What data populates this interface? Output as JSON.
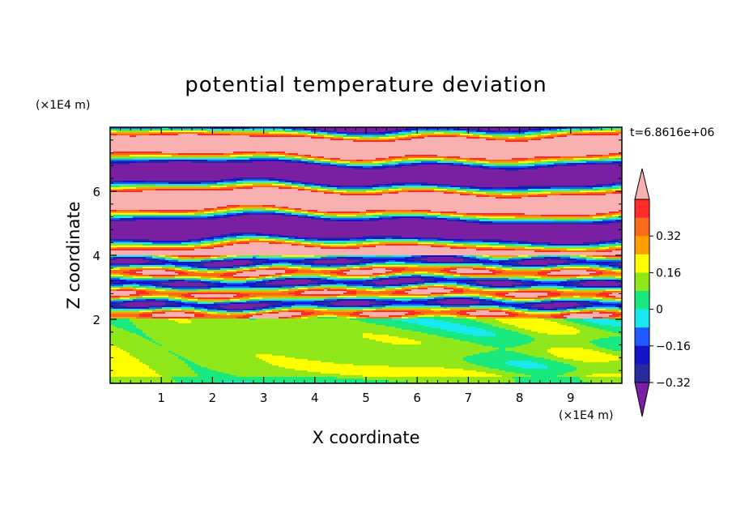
{
  "chart_data": {
    "type": "heatmap",
    "title": "potential temperature deviation",
    "xlabel": "X coordinate",
    "ylabel": "Z coordinate",
    "x_unit": "(×1E4 m)",
    "y_unit": "(×1E4 m)",
    "time_label": "t=6.8616e+06",
    "xlim": [
      0,
      10
    ],
    "ylim": [
      0,
      8
    ],
    "x_ticks": [
      "1",
      "2",
      "3",
      "4",
      "5",
      "6",
      "7",
      "8",
      "9"
    ],
    "y_ticks": [
      "2",
      "4",
      "6"
    ],
    "colorbar": {
      "labels": [
        "0.32",
        "0.16",
        "0",
        "−0.16",
        "−0.32"
      ],
      "levels": [
        -0.4,
        -0.32,
        -0.24,
        -0.16,
        -0.08,
        0,
        0.08,
        0.16,
        0.24,
        0.32,
        0.4
      ],
      "colors": [
        "#7a1fa2",
        "#2a2aa0",
        "#1414c8",
        "#1e5aff",
        "#18e8f0",
        "#18e87e",
        "#90e81a",
        "#ffff00",
        "#ffa000",
        "#ff6a1a",
        "#ff2a2a",
        "#f9b0b0"
      ],
      "extend": "both"
    },
    "regions": [
      {
        "z_range": [
          0,
          2.0
        ],
        "description_values": "mostly between -0.08 and 0.08 (green)"
      },
      {
        "z_range": [
          2.0,
          4.0
        ],
        "description_values": "thin alternating layers spanning -0.40 to 0.40"
      },
      {
        "z_range": [
          4.0,
          8.0
        ],
        "description_values": "thick alternating layers of >0.40 (pink) and <-0.40 (purple)"
      }
    ]
  }
}
